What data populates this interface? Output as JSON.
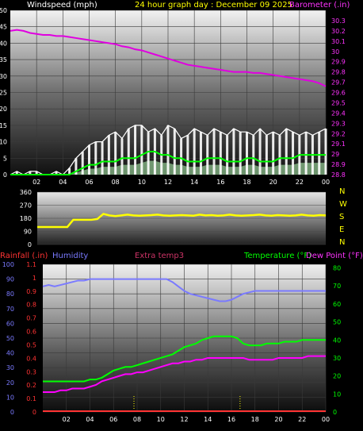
{
  "header": {
    "left": "Windspeed (mph)",
    "center": "24 hour graph day : December 09 2025",
    "right": "Barometer (.in)"
  },
  "colors": {
    "background": "#000000",
    "wind_avg": "#00ff00",
    "wind_gust": "#ffffff",
    "wind_light": "#b8ffb8",
    "barometer": "#e000e0",
    "direction": "#ffff00",
    "direction_base": "#cccc00",
    "rainfall": "#ff3333",
    "humidity": "#7a7aff",
    "extra_temp": "#cc3366",
    "temperature": "#00ff00",
    "dewpoint": "#ff00ff",
    "marker": "#ffff00"
  },
  "x_tick_labels": [
    "02",
    "04",
    "06",
    "08",
    "10",
    "12",
    "14",
    "16",
    "18",
    "20",
    "22",
    "00"
  ],
  "chart_data": [
    {
      "type": "line",
      "title": "24 hour graph day : December 09 2025",
      "x": [
        0,
        0.5,
        1,
        1.5,
        2,
        2.5,
        3,
        3.5,
        4,
        4.5,
        5,
        5.5,
        6,
        6.5,
        7,
        7.5,
        8,
        8.5,
        9,
        9.5,
        10,
        10.5,
        11,
        11.5,
        12,
        12.5,
        13,
        13.5,
        14,
        14.5,
        15,
        15.5,
        16,
        16.5,
        17,
        17.5,
        18,
        18.5,
        19,
        19.5,
        20,
        20.5,
        21,
        21.5,
        22,
        22.5,
        23,
        23.5,
        24
      ],
      "left_axis": {
        "label": "Windspeed (mph)",
        "ylim": [
          0,
          50
        ],
        "ticks": [
          0,
          5,
          10,
          15,
          20,
          25,
          30,
          35,
          40,
          45,
          50
        ]
      },
      "right_axis": {
        "label": "Barometer (.in)",
        "ylim": [
          28.8,
          30.4
        ],
        "ticks": [
          "28.8",
          "28.9",
          "29",
          "29.1",
          "29.2",
          "29.3",
          "29.4",
          "29.5",
          "29.6",
          "29.7",
          "29.8",
          "29.9",
          "30",
          "30.1",
          "30.2",
          "30.3"
        ]
      },
      "series": [
        {
          "name": "Barometer",
          "axis": "right",
          "color": "#e000e0",
          "values": [
            30.2,
            30.21,
            30.2,
            30.18,
            30.17,
            30.16,
            30.16,
            30.15,
            30.15,
            30.14,
            30.13,
            30.12,
            30.11,
            30.1,
            30.09,
            30.08,
            30.07,
            30.05,
            30.04,
            30.02,
            30.01,
            29.99,
            29.97,
            29.95,
            29.93,
            29.91,
            29.89,
            29.87,
            29.86,
            29.85,
            29.84,
            29.83,
            29.82,
            29.81,
            29.8,
            29.8,
            29.8,
            29.79,
            29.79,
            29.78,
            29.77,
            29.76,
            29.75,
            29.74,
            29.73,
            29.72,
            29.71,
            29.69,
            29.66
          ]
        },
        {
          "name": "Wind gust",
          "axis": "left",
          "color": "#ffffff",
          "values": [
            0,
            1,
            0,
            1,
            1,
            0,
            0,
            1,
            0,
            2,
            5,
            7,
            9,
            10,
            10,
            12,
            13,
            11,
            14,
            15,
            15,
            13,
            14,
            12,
            15,
            14,
            11,
            12,
            14,
            13,
            12,
            14,
            13,
            12,
            14,
            13,
            13,
            12,
            14,
            12,
            13,
            12,
            14,
            13,
            12,
            13,
            12,
            13,
            14
          ]
        },
        {
          "name": "Wind average",
          "axis": "left",
          "color": "#00ff00",
          "values": [
            0,
            0,
            0,
            0,
            0,
            0,
            0,
            0,
            0,
            0,
            1,
            2,
            3,
            3,
            4,
            4,
            4,
            5,
            5,
            5,
            6,
            7,
            7,
            6,
            6,
            5,
            5,
            4,
            4,
            4,
            5,
            5,
            5,
            4,
            4,
            4,
            5,
            5,
            4,
            4,
            4,
            5,
            5,
            5,
            6,
            6,
            6,
            6,
            6
          ]
        }
      ]
    },
    {
      "type": "line",
      "x": [
        0,
        0.5,
        1,
        1.5,
        2,
        2.5,
        3,
        3.5,
        4,
        4.5,
        5,
        5.5,
        6,
        6.5,
        7,
        7.5,
        8,
        8.5,
        9,
        9.5,
        10,
        10.5,
        11,
        11.5,
        12,
        12.5,
        13,
        13.5,
        14,
        14.5,
        15,
        15.5,
        16,
        16.5,
        17,
        17.5,
        18,
        18.5,
        19,
        19.5,
        20,
        20.5,
        21,
        21.5,
        22,
        22.5,
        23,
        23.5,
        24
      ],
      "left_axis": {
        "ylim": [
          0,
          360
        ],
        "ticks": [
          0,
          90,
          180,
          270,
          360
        ]
      },
      "right_labels": [
        "N",
        "W",
        "S",
        "E",
        "N"
      ],
      "series": [
        {
          "name": "Wind direction",
          "color": "#ffff00",
          "values": [
            120,
            120,
            120,
            120,
            120,
            120,
            170,
            170,
            170,
            170,
            175,
            210,
            200,
            195,
            200,
            205,
            200,
            198,
            200,
            202,
            205,
            200,
            198,
            200,
            202,
            200,
            198,
            205,
            200,
            202,
            198,
            200,
            205,
            200,
            198,
            200,
            202,
            205,
            200,
            198,
            202,
            200,
            198,
            200,
            205,
            200,
            198,
            202,
            200
          ]
        }
      ]
    },
    {
      "type": "line",
      "x": [
        0,
        0.5,
        1,
        1.5,
        2,
        2.5,
        3,
        3.5,
        4,
        4.5,
        5,
        5.5,
        6,
        6.5,
        7,
        7.5,
        8,
        8.5,
        9,
        9.5,
        10,
        10.5,
        11,
        11.5,
        12,
        12.5,
        13,
        13.5,
        14,
        14.5,
        15,
        15.5,
        16,
        16.5,
        17,
        17.5,
        18,
        18.5,
        19,
        19.5,
        20,
        20.5,
        21,
        21.5,
        22,
        22.5,
        23,
        23.5,
        24
      ],
      "labels": {
        "rainfall": "Rainfall (.in)",
        "humidity": "Humidity",
        "extra": "Extra temp3",
        "temperature": "Temperature (°F)",
        "dewpoint": "Dew Point (°F)"
      },
      "humidity_axis": {
        "ylim": [
          0,
          100
        ],
        "ticks": [
          0,
          10,
          20,
          30,
          40,
          50,
          60,
          70,
          80,
          90,
          100
        ]
      },
      "rain_axis": {
        "ylim": [
          0,
          1.1
        ],
        "ticks": [
          "0",
          "0.1",
          "0.2",
          "0.3",
          "0.4",
          "0.5",
          "0.6",
          "0.7",
          "0.8",
          "0.9",
          "1",
          "1.1"
        ]
      },
      "temp_axis": {
        "ylim": [
          0,
          82
        ],
        "ticks": [
          0,
          10,
          20,
          30,
          40,
          50,
          60,
          70,
          80
        ]
      },
      "series": [
        {
          "name": "Humidity",
          "axis": "humidity",
          "color": "#7a7aff",
          "values": [
            85,
            86,
            85,
            86,
            87,
            88,
            89,
            89,
            90,
            90,
            90,
            90,
            90,
            90,
            90,
            90,
            90,
            90,
            90,
            90,
            90,
            90,
            88,
            85,
            82,
            80,
            79,
            78,
            77,
            76,
            75,
            75,
            76,
            78,
            80,
            81,
            82,
            82,
            82,
            82,
            82,
            82,
            82,
            82,
            82,
            82,
            82,
            82,
            82
          ]
        },
        {
          "name": "Temperature",
          "axis": "temp",
          "color": "#00ff00",
          "values": [
            17,
            17,
            17,
            17,
            17,
            17,
            17,
            17,
            18,
            18,
            19,
            21,
            23,
            24,
            25,
            25,
            26,
            27,
            28,
            29,
            30,
            31,
            32,
            34,
            36,
            37,
            38,
            40,
            41,
            42,
            42,
            42,
            42,
            41,
            38,
            37,
            37,
            37,
            38,
            38,
            38,
            39,
            39,
            39,
            40,
            40,
            40,
            40,
            40
          ]
        },
        {
          "name": "Dew Point",
          "axis": "temp",
          "color": "#ff00ff",
          "values": [
            11,
            11,
            11,
            12,
            12,
            13,
            13,
            13,
            14,
            15,
            17,
            18,
            19,
            20,
            21,
            21,
            22,
            22,
            23,
            24,
            25,
            26,
            27,
            27,
            28,
            28,
            29,
            29,
            30,
            30,
            30,
            30,
            30,
            30,
            30,
            29,
            29,
            29,
            29,
            29,
            30,
            30,
            30,
            30,
            30,
            31,
            31,
            31,
            31
          ]
        },
        {
          "name": "Rainfall",
          "axis": "rain",
          "color": "#ff3333",
          "values": [
            0,
            0,
            0,
            0,
            0,
            0,
            0,
            0,
            0,
            0,
            0,
            0,
            0,
            0,
            0,
            0,
            0,
            0,
            0,
            0,
            0,
            0,
            0,
            0,
            0,
            0,
            0,
            0,
            0,
            0,
            0,
            0,
            0,
            0,
            0,
            0,
            0,
            0,
            0,
            0,
            0,
            0,
            0,
            0,
            0,
            0,
            0,
            0,
            0
          ]
        }
      ]
    }
  ]
}
